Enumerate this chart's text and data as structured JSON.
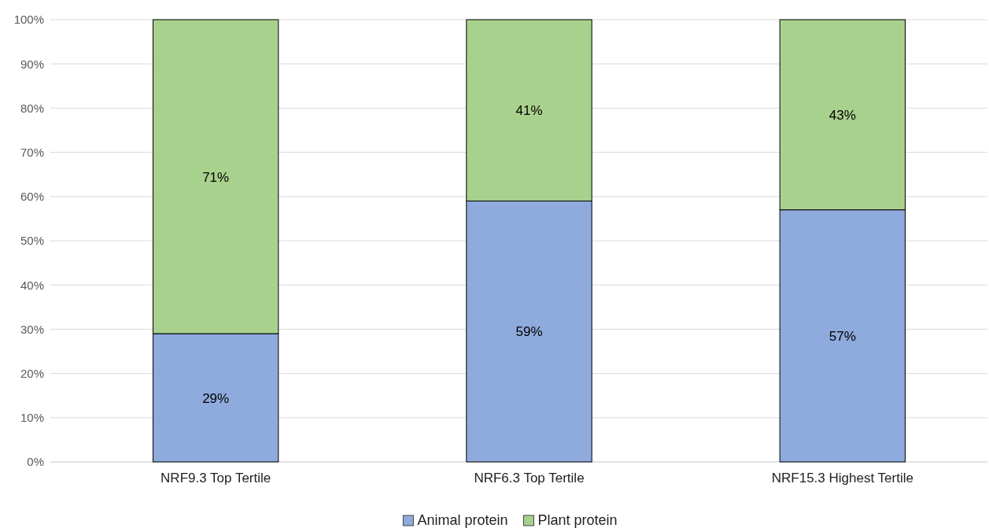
{
  "chart_data": {
    "type": "bar",
    "stacked": true,
    "categories": [
      "NRF9.3 Top Tertile",
      "NRF6.3 Top Tertile",
      "NRF15.3 Highest Tertile"
    ],
    "series": [
      {
        "name": "Animal protein",
        "color": "#8faadc",
        "values": [
          29,
          59,
          57
        ],
        "value_labels": [
          "29%",
          "59%",
          "57%"
        ]
      },
      {
        "name": "Plant protein",
        "color": "#a9d18e",
        "values": [
          71,
          41,
          43
        ],
        "value_labels": [
          "71%",
          "41%",
          "43%"
        ]
      }
    ],
    "ylim": [
      0,
      100
    ],
    "yticks": [
      {
        "value": 0,
        "label": "0%"
      },
      {
        "value": 10,
        "label": "10%"
      },
      {
        "value": 20,
        "label": "20%"
      },
      {
        "value": 30,
        "label": "30%"
      },
      {
        "value": 40,
        "label": "40%"
      },
      {
        "value": 50,
        "label": "50%"
      },
      {
        "value": 60,
        "label": "60%"
      },
      {
        "value": 70,
        "label": "70%"
      },
      {
        "value": 80,
        "label": "80%"
      },
      {
        "value": 90,
        "label": "90%"
      },
      {
        "value": 100,
        "label": "100%"
      }
    ],
    "grid": "y",
    "legend": "bottom"
  }
}
